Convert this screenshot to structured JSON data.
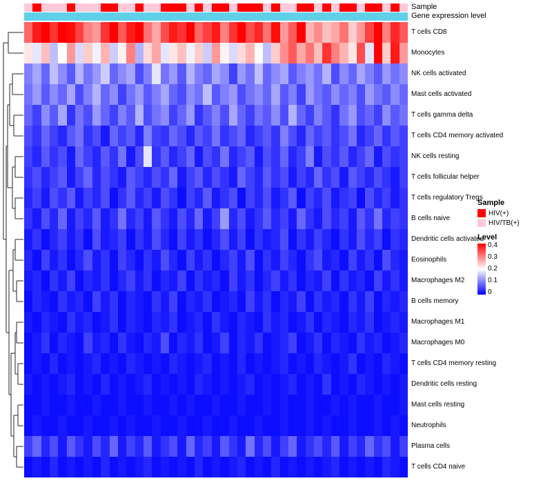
{
  "annotations": {
    "sample_label": "Sample",
    "gene_label": "Gene expression level",
    "gene_color": "#5fd0e8",
    "sample_colors": {
      "HIV(+)": "#ff0000",
      "HIV/TB(+)": "#ffc9d9"
    },
    "sample_values": [
      "HIV/TB(+)",
      "HIV(+)",
      "HIV/TB(+)",
      "HIV/TB(+)",
      "HIV/TB(+)",
      "HIV(+)",
      "HIV/TB(+)",
      "HIV/TB(+)",
      "HIV/TB(+)",
      "HIV(+)",
      "HIV(+)",
      "HIV/TB(+)",
      "HIV/TB(+)",
      "HIV(+)",
      "HIV/TB(+)",
      "HIV/TB(+)",
      "HIV(+)",
      "HIV(+)",
      "HIV(+)",
      "HIV/TB(+)",
      "HIV(+)",
      "HIV/TB(+)",
      "HIV(+)",
      "HIV(+)",
      "HIV/TB(+)",
      "HIV(+)",
      "HIV(+)",
      "HIV(+)",
      "HIV/TB(+)",
      "HIV(+)",
      "HIV/TB(+)",
      "HIV/TB(+)",
      "HIV(+)",
      "HIV(+)",
      "HIV/TB(+)",
      "HIV(+)",
      "HIV/TB(+)",
      "HIV(+)",
      "HIV(+)",
      "HIV/TB(+)",
      "HIV(+)",
      "HIV(+)",
      "HIV/TB(+)",
      "HIV(+)",
      "HIV/TB(+)"
    ]
  },
  "chart_data": {
    "type": "heatmap",
    "rows": [
      "T cells CD8",
      "Monocytes",
      "NK cells activated",
      "Mast cells activated",
      "T cells gamma delta",
      "T cells CD4 memory activated",
      "NK cells resting",
      "T cells follicular helper",
      "T cells regulatory Tregs",
      "B cells naive",
      "Dendritic cells activated",
      "Eosinophils",
      "Macrophages M2",
      "B cells memory",
      "Macrophages M1",
      "Macrophages M0",
      "T cells CD4 memory resting",
      "Dendritic cells resting",
      "Mast cells resting",
      "Neutrophils",
      "Plasma cells",
      "T cells CD4 naive"
    ],
    "columns_count": 45,
    "colormap": {
      "min": 0,
      "mid": 0.2,
      "max": 0.4,
      "min_color": "#0000ff",
      "mid_color": "#ffffff",
      "max_color": "#ff0000"
    },
    "values": [
      [
        0.32,
        0.38,
        0.4,
        0.36,
        0.4,
        0.39,
        0.35,
        0.3,
        0.28,
        0.36,
        0.4,
        0.33,
        0.38,
        0.4,
        0.31,
        0.27,
        0.34,
        0.38,
        0.36,
        0.4,
        0.32,
        0.35,
        0.38,
        0.3,
        0.36,
        0.4,
        0.34,
        0.37,
        0.31,
        0.39,
        0.28,
        0.33,
        0.4,
        0.26,
        0.29,
        0.25,
        0.27,
        0.31,
        0.24,
        0.28,
        0.35,
        0.4,
        0.3,
        0.37,
        0.33
      ],
      [
        0.22,
        0.18,
        0.25,
        0.15,
        0.2,
        0.28,
        0.17,
        0.24,
        0.19,
        0.26,
        0.16,
        0.21,
        0.3,
        0.14,
        0.23,
        0.27,
        0.18,
        0.22,
        0.25,
        0.19,
        0.24,
        0.16,
        0.28,
        0.21,
        0.17,
        0.23,
        0.26,
        0.2,
        0.15,
        0.24,
        0.29,
        0.33,
        0.27,
        0.31,
        0.25,
        0.36,
        0.3,
        0.26,
        0.22,
        0.34,
        0.18,
        0.4,
        0.24,
        0.38,
        0.28
      ],
      [
        0.1,
        0.13,
        0.08,
        0.15,
        0.11,
        0.07,
        0.14,
        0.09,
        0.12,
        0.16,
        0.08,
        0.11,
        0.13,
        0.06,
        0.1,
        0.18,
        0.09,
        0.12,
        0.07,
        0.14,
        0.1,
        0.08,
        0.13,
        0.11,
        0.05,
        0.12,
        0.09,
        0.15,
        0.08,
        0.11,
        0.13,
        0.07,
        0.1,
        0.12,
        0.09,
        0.14,
        0.06,
        0.11,
        0.08,
        0.13,
        0.1,
        0.07,
        0.12,
        0.09,
        0.11
      ],
      [
        0.09,
        0.12,
        0.07,
        0.11,
        0.08,
        0.13,
        0.06,
        0.1,
        0.14,
        0.08,
        0.11,
        0.05,
        0.09,
        0.12,
        0.07,
        0.1,
        0.13,
        0.08,
        0.06,
        0.11,
        0.09,
        0.15,
        0.07,
        0.1,
        0.12,
        0.06,
        0.09,
        0.11,
        0.08,
        0.13,
        0.07,
        0.1,
        0.05,
        0.12,
        0.09,
        0.07,
        0.11,
        0.08,
        0.1,
        0.06,
        0.12,
        0.09,
        0.07,
        0.11,
        0.08
      ],
      [
        0.08,
        0.05,
        0.11,
        0.07,
        0.13,
        0.04,
        0.09,
        0.06,
        0.12,
        0.08,
        0.05,
        0.1,
        0.07,
        0.14,
        0.06,
        0.09,
        0.11,
        0.05,
        0.08,
        0.12,
        0.04,
        0.07,
        0.1,
        0.06,
        0.13,
        0.08,
        0.05,
        0.09,
        0.07,
        0.11,
        0.06,
        0.14,
        0.08,
        0.05,
        0.1,
        0.07,
        0.04,
        0.09,
        0.12,
        0.06,
        0.08,
        0.05,
        0.11,
        0.07,
        0.09
      ],
      [
        0.06,
        0.04,
        0.08,
        0.05,
        0.03,
        0.07,
        0.09,
        0.04,
        0.06,
        0.02,
        0.08,
        0.05,
        0.07,
        0.03,
        0.1,
        0.05,
        0.04,
        0.08,
        0.06,
        0.03,
        0.07,
        0.05,
        0.09,
        0.04,
        0.06,
        0.08,
        0.03,
        0.05,
        0.07,
        0.04,
        0.1,
        0.06,
        0.03,
        0.08,
        0.05,
        0.07,
        0.04,
        0.06,
        0.09,
        0.03,
        0.05,
        0.08,
        0.04,
        0.07,
        0.05
      ],
      [
        0.05,
        0.03,
        0.07,
        0.04,
        0.06,
        0.02,
        0.08,
        0.05,
        0.03,
        0.07,
        0.04,
        0.09,
        0.02,
        0.06,
        0.18,
        0.04,
        0.07,
        0.03,
        0.05,
        0.08,
        0.02,
        0.06,
        0.04,
        0.09,
        0.03,
        0.05,
        0.07,
        0.02,
        0.06,
        0.04,
        0.08,
        0.03,
        0.05,
        0.1,
        0.02,
        0.06,
        0.04,
        0.07,
        0.03,
        0.05,
        0.08,
        0.02,
        0.06,
        0.04,
        0.05
      ],
      [
        0.04,
        0.06,
        0.03,
        0.05,
        0.07,
        0.02,
        0.05,
        0.08,
        0.03,
        0.06,
        0.04,
        0.02,
        0.07,
        0.05,
        0.03,
        0.06,
        0.04,
        0.08,
        0.02,
        0.05,
        0.07,
        0.03,
        0.06,
        0.04,
        0.02,
        0.08,
        0.05,
        0.03,
        0.07,
        0.04,
        0.06,
        0.02,
        0.05,
        0.03,
        0.08,
        0.04,
        0.06,
        0.02,
        0.07,
        0.05,
        0.03,
        0.06,
        0.04,
        0.02,
        0.05
      ],
      [
        0.03,
        0.05,
        0.02,
        0.06,
        0.04,
        0.07,
        0.02,
        0.05,
        0.03,
        0.06,
        0.01,
        0.04,
        0.07,
        0.03,
        0.05,
        0.02,
        0.06,
        0.04,
        0.01,
        0.05,
        0.03,
        0.07,
        0.02,
        0.04,
        0.06,
        0.01,
        0.05,
        0.03,
        0.06,
        0.02,
        0.04,
        0.07,
        0.01,
        0.05,
        0.03,
        0.06,
        0.02,
        0.04,
        0.05,
        0.01,
        0.06,
        0.03,
        0.05,
        0.02,
        0.04
      ],
      [
        0.04,
        0.02,
        0.06,
        0.03,
        0.08,
        0.02,
        0.05,
        0.03,
        0.07,
        0.02,
        0.04,
        0.09,
        0.03,
        0.05,
        0.02,
        0.07,
        0.04,
        0.02,
        0.06,
        0.03,
        0.08,
        0.02,
        0.05,
        0.12,
        0.03,
        0.06,
        0.02,
        0.04,
        0.07,
        0.03,
        0.05,
        0.02,
        0.08,
        0.04,
        0.02,
        0.06,
        0.03,
        0.05,
        0.02,
        0.07,
        0.04,
        0.09,
        0.03,
        0.05,
        0.04
      ],
      [
        0.02,
        0.04,
        0.01,
        0.03,
        0.05,
        0.02,
        0.04,
        0.01,
        0.06,
        0.02,
        0.03,
        0.05,
        0.01,
        0.04,
        0.02,
        0.06,
        0.03,
        0.01,
        0.05,
        0.02,
        0.04,
        0.01,
        0.03,
        0.06,
        0.02,
        0.05,
        0.01,
        0.04,
        0.02,
        0.03,
        0.06,
        0.01,
        0.04,
        0.02,
        0.05,
        0.03,
        0.01,
        0.04,
        0.02,
        0.06,
        0.03,
        0.05,
        0.01,
        0.04,
        0.03
      ],
      [
        0.03,
        0.01,
        0.05,
        0.02,
        0.04,
        0.01,
        0.03,
        0.06,
        0.02,
        0.04,
        0.01,
        0.05,
        0.03,
        0.01,
        0.04,
        0.02,
        0.06,
        0.03,
        0.01,
        0.05,
        0.02,
        0.04,
        0.01,
        0.03,
        0.05,
        0.02,
        0.06,
        0.01,
        0.04,
        0.02,
        0.05,
        0.03,
        0.01,
        0.04,
        0.06,
        0.02,
        0.03,
        0.01,
        0.05,
        0.02,
        0.04,
        0.01,
        0.06,
        0.03,
        0.02
      ],
      [
        0.02,
        0.03,
        0.01,
        0.04,
        0.02,
        0.05,
        0.01,
        0.03,
        0.02,
        0.04,
        0.01,
        0.03,
        0.05,
        0.02,
        0.04,
        0.01,
        0.03,
        0.02,
        0.05,
        0.01,
        0.04,
        0.02,
        0.03,
        0.01,
        0.05,
        0.02,
        0.04,
        0.01,
        0.03,
        0.05,
        0.02,
        0.04,
        0.01,
        0.03,
        0.02,
        0.05,
        0.01,
        0.04,
        0.02,
        0.03,
        0.01,
        0.05,
        0.02,
        0.04,
        0.02
      ],
      [
        0.01,
        0.03,
        0.02,
        0.01,
        0.04,
        0.02,
        0.03,
        0.01,
        0.05,
        0.02,
        0.04,
        0.01,
        0.03,
        0.02,
        0.01,
        0.04,
        0.02,
        0.05,
        0.01,
        0.03,
        0.02,
        0.04,
        0.01,
        0.02,
        0.03,
        0.01,
        0.05,
        0.02,
        0.04,
        0.01,
        0.03,
        0.02,
        0.05,
        0.01,
        0.04,
        0.02,
        0.03,
        0.01,
        0.04,
        0.02,
        0.05,
        0.01,
        0.03,
        0.02,
        0.03
      ],
      [
        0.02,
        0.01,
        0.03,
        0.02,
        0.01,
        0.04,
        0.02,
        0.03,
        0.01,
        0.02,
        0.04,
        0.01,
        0.03,
        0.02,
        0.01,
        0.03,
        0.02,
        0.04,
        0.01,
        0.02,
        0.03,
        0.01,
        0.04,
        0.02,
        0.01,
        0.03,
        0.02,
        0.01,
        0.04,
        0.02,
        0.03,
        0.01,
        0.02,
        0.04,
        0.01,
        0.03,
        0.02,
        0.01,
        0.03,
        0.02,
        0.04,
        0.01,
        0.02,
        0.03,
        0.02
      ],
      [
        0.01,
        0.02,
        0.04,
        0.01,
        0.03,
        0.02,
        0.01,
        0.05,
        0.02,
        0.03,
        0.01,
        0.04,
        0.02,
        0.01,
        0.03,
        0.02,
        0.06,
        0.01,
        0.03,
        0.02,
        0.04,
        0.01,
        0.02,
        0.05,
        0.01,
        0.03,
        0.02,
        0.04,
        0.01,
        0.02,
        0.03,
        0.05,
        0.01,
        0.02,
        0.04,
        0.01,
        0.03,
        0.02,
        0.01,
        0.04,
        0.02,
        0.03,
        0.01,
        0.02,
        0.03
      ],
      [
        0.01,
        0.02,
        0.01,
        0.03,
        0.01,
        0.02,
        0.01,
        0.02,
        0.03,
        0.01,
        0.02,
        0.01,
        0.03,
        0.02,
        0.01,
        0.02,
        0.01,
        0.03,
        0.02,
        0.01,
        0.02,
        0.03,
        0.01,
        0.02,
        0.01,
        0.03,
        0.01,
        0.02,
        0.01,
        0.02,
        0.03,
        0.01,
        0.02,
        0.01,
        0.03,
        0.02,
        0.01,
        0.02,
        0.04,
        0.01,
        0.02,
        0.01,
        0.03,
        0.02,
        0.01
      ],
      [
        0.02,
        0.01,
        0.02,
        0.01,
        0.02,
        0.03,
        0.01,
        0.02,
        0.01,
        0.03,
        0.01,
        0.02,
        0.01,
        0.02,
        0.03,
        0.01,
        0.02,
        0.01,
        0.02,
        0.01,
        0.03,
        0.02,
        0.01,
        0.02,
        0.01,
        0.02,
        0.03,
        0.01,
        0.02,
        0.01,
        0.02,
        0.03,
        0.01,
        0.02,
        0.01,
        0.04,
        0.01,
        0.02,
        0.01,
        0.03,
        0.02,
        0.01,
        0.02,
        0.01,
        0.02
      ],
      [
        0.01,
        0.01,
        0.02,
        0.01,
        0.01,
        0.02,
        0.01,
        0.01,
        0.02,
        0.01,
        0.01,
        0.02,
        0.01,
        0.01,
        0.02,
        0.01,
        0.01,
        0.02,
        0.01,
        0.02,
        0.01,
        0.01,
        0.02,
        0.01,
        0.01,
        0.02,
        0.01,
        0.01,
        0.02,
        0.01,
        0.02,
        0.01,
        0.01,
        0.02,
        0.01,
        0.01,
        0.02,
        0.01,
        0.02,
        0.01,
        0.01,
        0.02,
        0.01,
        0.01,
        0.02
      ],
      [
        0.01,
        0.02,
        0.01,
        0.01,
        0.02,
        0.01,
        0.01,
        0.02,
        0.01,
        0.01,
        0.02,
        0.01,
        0.02,
        0.01,
        0.01,
        0.02,
        0.01,
        0.01,
        0.02,
        0.01,
        0.01,
        0.02,
        0.01,
        0.01,
        0.02,
        0.01,
        0.01,
        0.02,
        0.01,
        0.01,
        0.02,
        0.01,
        0.01,
        0.02,
        0.01,
        0.02,
        0.01,
        0.01,
        0.02,
        0.01,
        0.01,
        0.02,
        0.01,
        0.02,
        0.01
      ],
      [
        0.05,
        0.08,
        0.03,
        0.06,
        0.02,
        0.07,
        0.04,
        0.02,
        0.06,
        0.03,
        0.08,
        0.02,
        0.05,
        0.03,
        0.07,
        0.02,
        0.04,
        0.06,
        0.02,
        0.08,
        0.03,
        0.05,
        0.02,
        0.07,
        0.04,
        0.02,
        0.09,
        0.03,
        0.06,
        0.02,
        0.05,
        0.08,
        0.02,
        0.04,
        0.06,
        0.03,
        0.07,
        0.02,
        0.05,
        0.03,
        0.08,
        0.04,
        0.06,
        0.02,
        0.05
      ],
      [
        0.01,
        0.02,
        0.01,
        0.03,
        0.01,
        0.02,
        0.01,
        0.02,
        0.01,
        0.03,
        0.01,
        0.02,
        0.01,
        0.02,
        0.03,
        0.01,
        0.02,
        0.01,
        0.02,
        0.01,
        0.03,
        0.01,
        0.02,
        0.01,
        0.02,
        0.03,
        0.01,
        0.02,
        0.01,
        0.03,
        0.01,
        0.02,
        0.01,
        0.02,
        0.01,
        0.02,
        0.03,
        0.01,
        0.02,
        0.01,
        0.02,
        0.01,
        0.03,
        0.02,
        0.01
      ]
    ]
  },
  "legend": {
    "sample_title": "Sample",
    "sample_items": [
      {
        "label": "HIV(+)",
        "color": "#ff0000"
      },
      {
        "label": "HIV/TB(+)",
        "color": "#ffc9d9"
      }
    ],
    "level_title": "Level",
    "level_ticks": [
      "0.4",
      "0.3",
      "0.2",
      "0.1",
      "0"
    ]
  }
}
